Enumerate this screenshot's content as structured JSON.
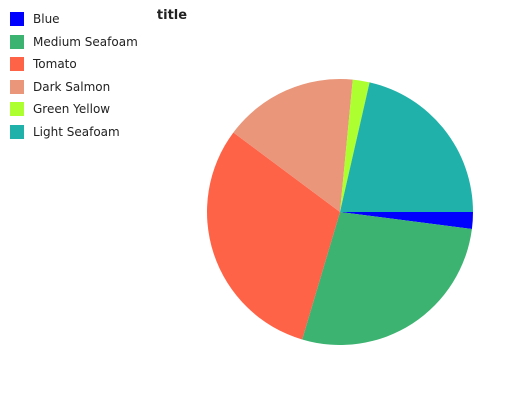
{
  "chart_data": {
    "type": "pie",
    "title": "title",
    "legend_position": "left",
    "categories": [
      "Blue",
      "Medium Seafoam",
      "Tomato",
      "Dark Salmon",
      "Green Yellow",
      "Light Seafoam"
    ],
    "values": [
      2.0,
      27.0,
      30.0,
      16.0,
      2.0,
      21.0
    ],
    "colors": [
      "#0000ff",
      "#3cb371",
      "#ff6347",
      "#e9967a",
      "#adff2f",
      "#20b2aa"
    ],
    "draw_order": [
      "Blue",
      "Medium Seafoam",
      "Tomato",
      "Dark Salmon",
      "Green Yellow",
      "Light Seafoam"
    ]
  }
}
